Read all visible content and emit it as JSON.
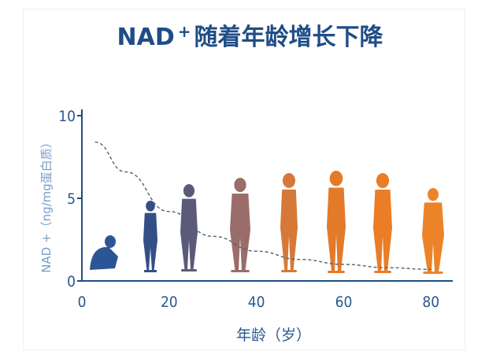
{
  "chart_data": {
    "type": "line",
    "title": "NAD",
    "title_sup": "+",
    "title_rest": "随着年龄增长下降",
    "xlabel": "年龄（岁）",
    "ylabel": "NAD +（ng/mg蛋白质）",
    "xlim": [
      0,
      85
    ],
    "ylim": [
      0,
      10
    ],
    "x_ticks": [
      0,
      20,
      40,
      60,
      80
    ],
    "y_ticks": [
      0,
      5,
      10
    ],
    "series": [
      {
        "style": "dashed",
        "color": "#4f6178",
        "x": [
          3,
          10,
          20,
          30,
          40,
          50,
          60,
          70,
          80
        ],
        "y": [
          8.4,
          6.6,
          4.2,
          2.7,
          1.8,
          1.3,
          1.0,
          0.8,
          0.7
        ]
      }
    ],
    "silhouette_colors": [
      "#2c5597",
      "#334f86",
      "#5c5a7a",
      "#9a6d6a",
      "#d57838",
      "#e37a2a",
      "#ea7d26",
      "#ec8329",
      "#f0953a"
    ]
  }
}
